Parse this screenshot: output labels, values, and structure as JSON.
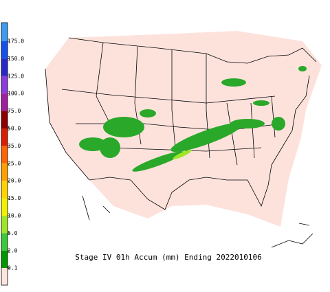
{
  "title": "Stage IV 01h Accum (mm) Ending 2022010106",
  "legend": {
    "labels": [
      "175.0",
      "150.0",
      "125.0",
      "100.0",
      "75.0",
      "50.0",
      "35.0",
      "25.0",
      "20.0",
      "15.0",
      "10.0",
      "5.0",
      "2.0",
      "0.1"
    ],
    "colors": [
      "#3c9cf0",
      "#1450f0",
      "#2828c8",
      "#8c3cdc",
      "#a01ea0",
      "#8c0000",
      "#dc1e00",
      "#ff6400",
      "#ffa000",
      "#ffd200",
      "#f0f000",
      "#a0e628",
      "#3cc83c",
      "#009600",
      "#ffe4de"
    ]
  }
}
